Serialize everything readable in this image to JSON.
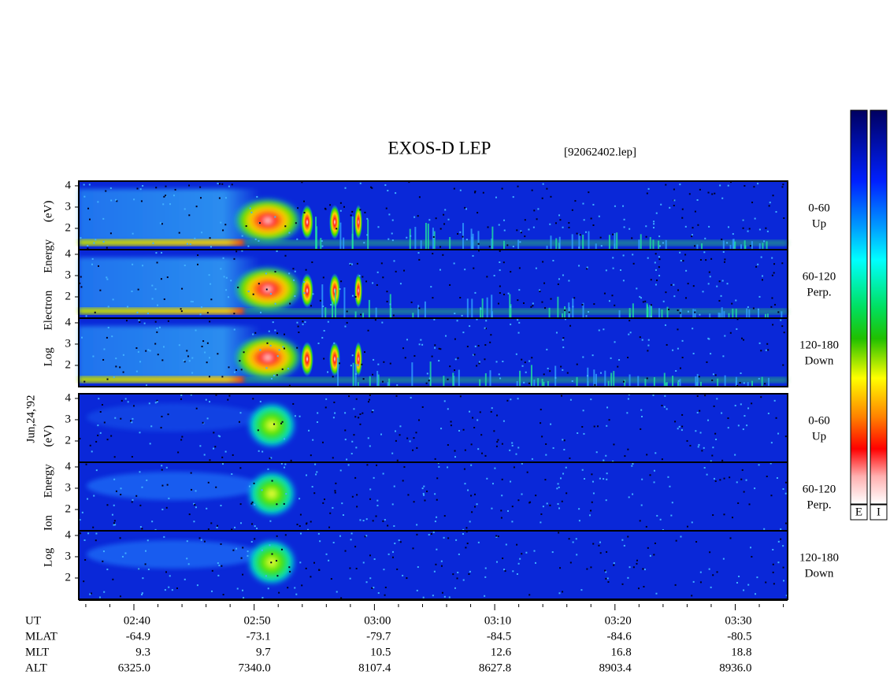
{
  "title": "EXOS-D LEP",
  "file": "[92062402.lep]",
  "date": "Jun,24,'92",
  "chart_data": {
    "type": "spectrogram",
    "ylim": [
      1,
      4.22
    ],
    "yticks": [
      2,
      3,
      4
    ],
    "groups": [
      {
        "axis_label": "Log Electron Energy (eV)",
        "panels": [
          {
            "label": "0-60",
            "sublabel": "Up"
          },
          {
            "label": "60-120",
            "sublabel": "Perp."
          },
          {
            "label": "120-180",
            "sublabel": "Down"
          }
        ]
      },
      {
        "axis_label": "Log Ion Energy (eV)",
        "panels": [
          {
            "label": "0-60",
            "sublabel": "Up"
          },
          {
            "label": "60-120",
            "sublabel": "Perp."
          },
          {
            "label": "120-180",
            "sublabel": "Down"
          }
        ]
      }
    ],
    "colorbars": [
      "E",
      "I"
    ]
  },
  "ephemeris": [
    {
      "name": "UT",
      "values": [
        "02:40",
        "02:50",
        "03:00",
        "03:10",
        "03:20",
        "03:30"
      ]
    },
    {
      "name": "MLAT",
      "values": [
        "-64.9",
        "-73.1",
        "-79.7",
        "-84.5",
        "-84.6",
        "-80.5"
      ]
    },
    {
      "name": "MLT",
      "values": [
        "9.3",
        "9.7",
        "10.5",
        "12.6",
        "16.8",
        "18.8"
      ]
    },
    {
      "name": "ALT",
      "values": [
        "6325.0",
        "7340.0",
        "8107.4",
        "8627.8",
        "8903.4",
        "8936.0"
      ]
    }
  ]
}
